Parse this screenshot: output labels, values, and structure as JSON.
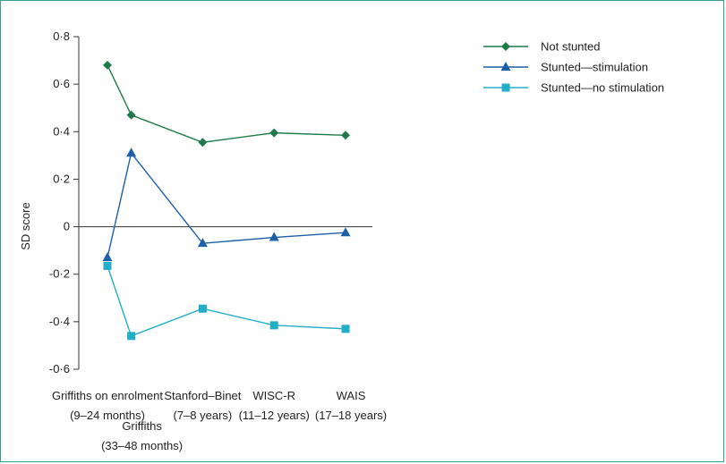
{
  "chart_data": {
    "type": "line",
    "ylabel": "SD score",
    "ylim": [
      -0.6,
      0.8
    ],
    "yticks": [
      "0·8",
      "0·6",
      "0·4",
      "0·2",
      "0",
      "-0·2",
      "-0·4",
      "-0·6"
    ],
    "ytick_values": [
      0.8,
      0.6,
      0.4,
      0.2,
      0,
      -0.2,
      -0.4,
      -0.6
    ],
    "x": [
      0,
      1,
      4,
      7,
      10
    ],
    "categories": [
      [
        "Griffiths on enrolment",
        "(9–24 months)"
      ],
      [
        "Griffiths",
        "(33–48 months)"
      ],
      [
        "Stanford–Binet",
        "(7–8 years)"
      ],
      [
        "WISC-R",
        "(11–12 years)"
      ],
      [
        "WAIS",
        "(17–18 years)"
      ]
    ],
    "series": [
      {
        "name": "Not stunted",
        "color": "#1f7a4a",
        "marker": "diamond",
        "values": [
          0.68,
          0.47,
          0.355,
          0.395,
          0.385
        ]
      },
      {
        "name": "Stunted—stimulation",
        "color": "#1d5fa8",
        "marker": "triangle",
        "values": [
          -0.13,
          0.31,
          -0.07,
          -0.045,
          -0.025
        ]
      },
      {
        "name": "Stunted—no stimulation",
        "color": "#22aec6",
        "marker": "square",
        "values": [
          -0.165,
          -0.46,
          -0.345,
          -0.415,
          -0.43
        ]
      }
    ],
    "legend_position": "top-right",
    "grid": false
  }
}
